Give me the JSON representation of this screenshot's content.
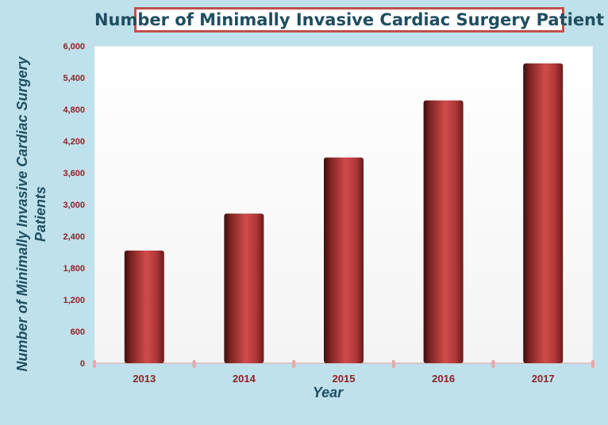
{
  "chart_data": {
    "type": "bar",
    "title": "Number of Minimally Invasive Cardiac Surgery Patient",
    "xlabel": "Year",
    "ylabel": "Number of Minimally Invasive Cardiac Surgery Patients",
    "categories": [
      "2013",
      "2014",
      "2015",
      "2016",
      "2017"
    ],
    "values": [
      2130,
      2830,
      3890,
      4970,
      5670
    ],
    "ylim": [
      0,
      6000
    ],
    "yticks": [
      "0",
      "600",
      "1,200",
      "1,800",
      "2,400",
      "3,000",
      "3,600",
      "4,200",
      "4,800",
      "5,400",
      "6,000"
    ],
    "grid": false,
    "legend": "none",
    "bar_color": "#c0504d",
    "axis_label_color": "#8b2323",
    "title_color": "#1f4e5f"
  }
}
